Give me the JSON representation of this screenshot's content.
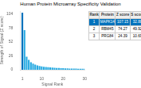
{
  "chart_data": {
    "type": "bar",
    "title": "Human Protein Microarray Specificity Validation",
    "xlabel": "Signal Rank",
    "ylabel": "Strength of Signal (Z score)",
    "x": [
      1,
      2,
      3,
      4,
      5,
      6,
      7,
      8,
      9,
      10,
      11,
      12,
      13,
      14,
      15,
      16,
      17,
      18,
      19,
      20,
      21,
      22,
      23,
      24,
      25,
      26,
      27,
      28,
      29,
      30
    ],
    "values": [
      107.15,
      74.27,
      24.39,
      18.5,
      14.0,
      11.5,
      9.5,
      8.2,
      7.1,
      6.3,
      5.7,
      5.2,
      4.8,
      4.4,
      4.1,
      3.8,
      3.5,
      3.3,
      3.1,
      2.9,
      2.7,
      2.5,
      2.4,
      2.3,
      2.2,
      2.1,
      2.0,
      1.9,
      1.8,
      1.7
    ],
    "colors": [
      "#0072bc",
      "#29abe2",
      "#29abe2",
      "#29abe2",
      "#29abe2",
      "#29abe2",
      "#29abe2",
      "#29abe2",
      "#29abe2",
      "#29abe2",
      "#29abe2",
      "#29abe2",
      "#29abe2",
      "#29abe2",
      "#29abe2",
      "#29abe2",
      "#29abe2",
      "#29abe2",
      "#29abe2",
      "#29abe2",
      "#29abe2",
      "#29abe2",
      "#29abe2",
      "#29abe2",
      "#29abe2",
      "#29abe2",
      "#29abe2",
      "#29abe2",
      "#29abe2",
      "#29abe2"
    ],
    "xlim": [
      0,
      30
    ],
    "xticks": [
      1,
      10,
      20,
      30
    ],
    "ylim": [
      0,
      110
    ],
    "yticks": [
      0,
      26,
      52,
      78,
      104
    ],
    "grid": false,
    "table": {
      "headers": [
        "Rank",
        "Protein",
        "Z score",
        "S score"
      ],
      "rows": [
        [
          "1",
          "MAPK14",
          "107.15",
          "32.88"
        ],
        [
          "2",
          "RBM45",
          "74.27",
          "49.92"
        ],
        [
          "3",
          "PRG84",
          "24.39",
          "10.69"
        ]
      ]
    }
  }
}
